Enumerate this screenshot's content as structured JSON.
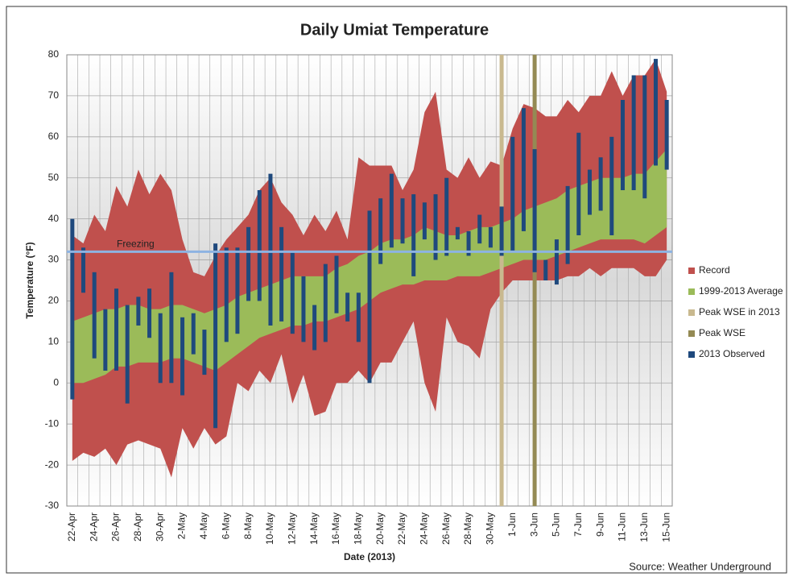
{
  "chart_data": {
    "type": "range",
    "title": "Daily Umiat Temperature",
    "y_label": "Temperature (°F)",
    "x_label": "Date (2013)",
    "source": "Source: Weather Underground",
    "categories": [
      "22-Apr",
      null,
      "24-Apr",
      null,
      "26-Apr",
      null,
      "28-Apr",
      null,
      "30-Apr",
      null,
      "2-May",
      null,
      "4-May",
      null,
      "6-May",
      null,
      "8-May",
      null,
      "10-May",
      null,
      "12-May",
      null,
      "14-May",
      null,
      "16-May",
      null,
      "18-May",
      null,
      "20-May",
      null,
      "22-May",
      null,
      "24-May",
      null,
      "26-May",
      null,
      "28-May",
      null,
      "30-May",
      null,
      "1-Jun",
      null,
      "3-Jun",
      null,
      "5-Jun",
      null,
      "7-Jun",
      null,
      "9-Jun",
      null,
      "11-Jun",
      null,
      "13-Jun",
      null,
      "15-Jun"
    ],
    "ylim": [
      -30,
      80
    ],
    "yticks": [
      -30,
      -20,
      -10,
      0,
      10,
      20,
      30,
      40,
      50,
      60,
      70,
      80
    ],
    "grid": true,
    "legend": "right",
    "annotation": {
      "text": "Freezing",
      "value": 32,
      "color": "#8db3e2"
    },
    "series": [
      {
        "name": "Record",
        "color": "#c0504d",
        "high": [
          36,
          34,
          41,
          37,
          48,
          43,
          52,
          46,
          51,
          47,
          35,
          27,
          26,
          31,
          35,
          38,
          41,
          47,
          50,
          44,
          41,
          36,
          41,
          37,
          42,
          35,
          55,
          53,
          53,
          53,
          47,
          52,
          66,
          71,
          52,
          50,
          55,
          50,
          54,
          53,
          62,
          68,
          67,
          65,
          65,
          69,
          66,
          70,
          70,
          76,
          70,
          75,
          75,
          79,
          71
        ],
        "low": [
          -19,
          -17,
          -18,
          -16,
          -20,
          -15,
          -14,
          -15,
          -16,
          -23,
          -11,
          -16,
          -11,
          -15,
          -13,
          0,
          -2,
          3,
          0,
          7,
          -5,
          2,
          -8,
          -7,
          0,
          0,
          3,
          0,
          5,
          5,
          10,
          15,
          0,
          -7,
          16,
          10,
          9,
          6,
          18,
          22,
          25,
          25,
          25,
          25,
          25,
          26,
          26,
          28,
          26,
          28,
          28,
          28,
          26,
          26,
          30
        ]
      },
      {
        "name": "1999-2013 Average",
        "color": "#9bbb59",
        "high": [
          15,
          16,
          17,
          18,
          18,
          19,
          19,
          18,
          18,
          19,
          19,
          18,
          17,
          18,
          19,
          21,
          22,
          23,
          24,
          25,
          26,
          26,
          26,
          26,
          28,
          29,
          31,
          32,
          34,
          35,
          35,
          36,
          38,
          37,
          36,
          36,
          37,
          38,
          38,
          39,
          40,
          42,
          43,
          44,
          45,
          47,
          48,
          49,
          50,
          50,
          50,
          51,
          51,
          54,
          57
        ],
        "low": [
          0,
          0,
          1,
          2,
          4,
          4,
          5,
          5,
          5,
          6,
          6,
          5,
          4,
          3,
          5,
          7,
          9,
          11,
          12,
          13,
          14,
          14,
          15,
          15,
          16,
          17,
          18,
          20,
          22,
          23,
          24,
          24,
          25,
          25,
          25,
          26,
          26,
          26,
          27,
          28,
          29,
          30,
          30,
          30,
          31,
          32,
          33,
          34,
          35,
          35,
          35,
          35,
          34,
          36,
          38
        ]
      },
      {
        "name": "Peak WSE in 2013",
        "color": "#c9b98f",
        "index": 39
      },
      {
        "name": "Peak WSE",
        "color": "#948a54",
        "index": 42
      },
      {
        "name": "2013 Observed",
        "color": "#1f497d",
        "high": [
          40,
          33,
          27,
          18,
          23,
          19,
          21,
          23,
          17,
          27,
          16,
          17,
          13,
          34,
          33,
          33,
          38,
          47,
          51,
          38,
          32,
          26,
          19,
          29,
          31,
          22,
          22,
          42,
          45,
          51,
          45,
          46,
          44,
          46,
          50,
          38,
          37,
          41,
          38,
          43,
          60,
          67,
          57,
          30,
          35,
          48,
          61,
          52,
          55,
          60,
          69,
          75,
          75,
          79,
          69
        ],
        "low": [
          -4,
          22,
          6,
          3,
          3,
          -5,
          14,
          11,
          0,
          0,
          -3,
          7,
          2,
          -11,
          10,
          12,
          20,
          20,
          14,
          15,
          12,
          10,
          8,
          10,
          17,
          15,
          10,
          0,
          29,
          33,
          34,
          26,
          35,
          30,
          31,
          35,
          31,
          34,
          33,
          31,
          32,
          37,
          27,
          25,
          24,
          29,
          36,
          41,
          42,
          36,
          47,
          47,
          45,
          53,
          52
        ]
      }
    ]
  }
}
